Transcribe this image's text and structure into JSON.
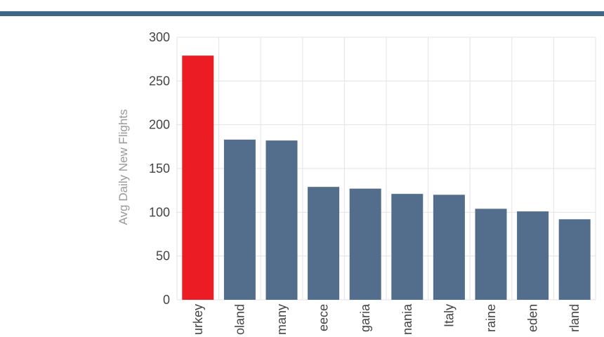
{
  "colors": {
    "header_rule": "#3f6789",
    "highlight_bar": "#ec1c24",
    "bar": "#536d8d",
    "grid": "#e3e3e3",
    "axis_text": "#444444",
    "axis_title": "#999999"
  },
  "chart_data": {
    "type": "bar",
    "ylabel": "Avg Daily New Flights",
    "ylim": [
      0,
      300
    ],
    "yticks": [
      0,
      50,
      100,
      150,
      200,
      250,
      300
    ],
    "grid": true,
    "categories": [
      "urkey",
      "oland",
      "many",
      "eece",
      "garia",
      "nania",
      "Italy",
      "raine",
      "eden",
      "rland"
    ],
    "values": [
      279,
      183,
      182,
      129,
      127,
      121,
      120,
      104,
      101,
      92
    ],
    "highlight_index": 0
  }
}
